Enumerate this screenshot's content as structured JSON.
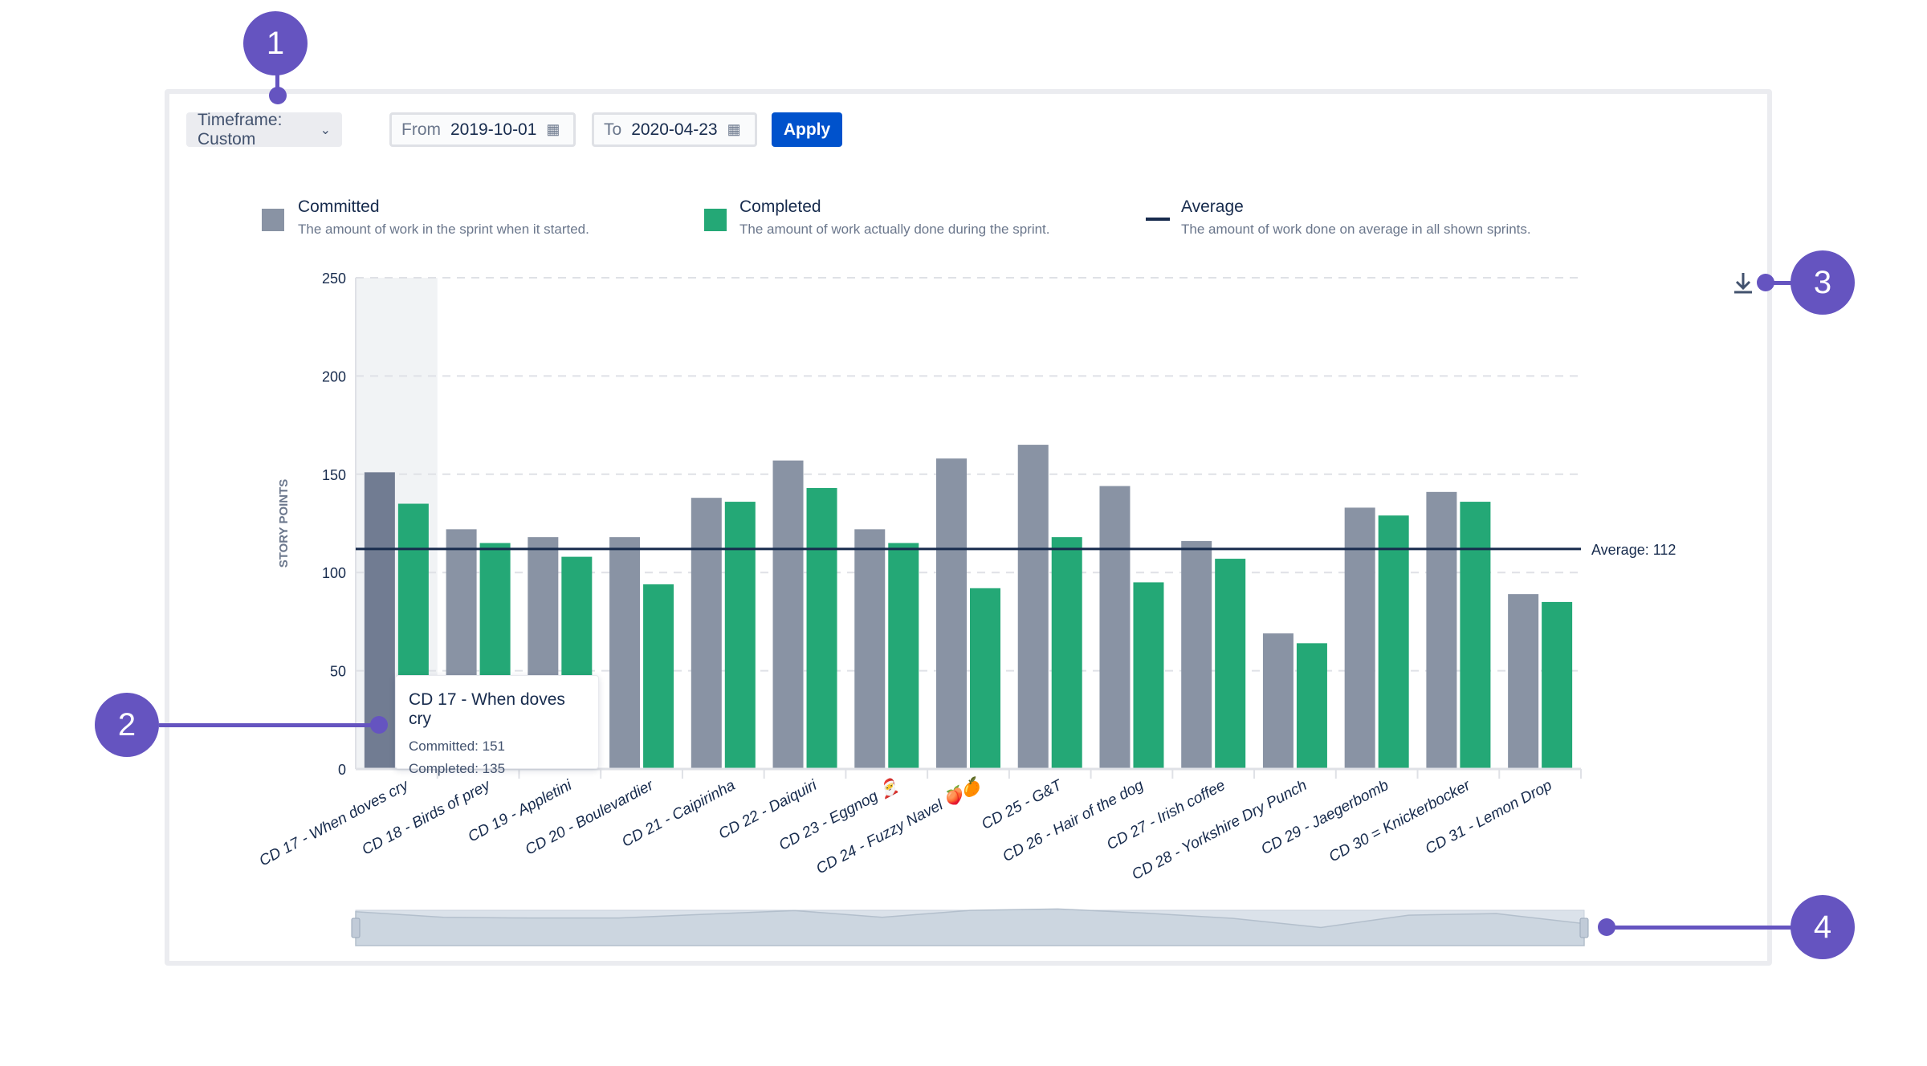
{
  "toolbar": {
    "timeframe_label": "Timeframe: Custom",
    "from_label": "From",
    "from_value": "2019-10-01",
    "to_label": "To",
    "to_value": "2020-04-23",
    "apply_label": "Apply"
  },
  "legend": [
    {
      "title": "Committed",
      "desc": "The amount of work in the sprint when it started.",
      "color": "#8993a4"
    },
    {
      "title": "Completed",
      "desc": "The amount of work actually done during the sprint.",
      "color": "#24a876"
    },
    {
      "title": "Average",
      "desc": "The amount of work done on average in all shown sprints.",
      "color": "#172b4d"
    }
  ],
  "tooltip": {
    "title": "CD 17 - When doves cry",
    "committed": "Committed: 151",
    "completed": "Completed: 135"
  },
  "callouts": [
    "1",
    "2",
    "3",
    "4"
  ],
  "icons": {
    "download": "download-icon",
    "calendar": "calendar-icon",
    "dropdown": "chevron-down-icon"
  },
  "chart_data": {
    "type": "bar",
    "ylabel": "STORY POINTS",
    "ylim": [
      0,
      250
    ],
    "yticks": [
      0,
      50,
      100,
      150,
      200,
      250
    ],
    "grid": true,
    "categories": [
      "CD 17 - When doves cry",
      "CD 18 - Birds of prey",
      "CD 19 - Appletini",
      "CD 20 - Boulevardier",
      "CD 21 - Caipirinha",
      "CD 22 - Daiquiri",
      "CD 23 - Eggnog 🎅",
      "CD 24 - Fuzzy Navel 🍑🍊",
      "CD 25 - G&T",
      "CD 26 - Hair of the dog",
      "CD 27 - Irish coffee",
      "CD 28 - Yorkshire Dry Punch",
      "CD 29 - Jaegerbomb",
      "CD 30 = Knickerbocker",
      "CD 31 - Lemon Drop"
    ],
    "series": [
      {
        "name": "Committed",
        "color": "#8993a4",
        "values": [
          151,
          122,
          118,
          118,
          138,
          157,
          122,
          158,
          165,
          144,
          116,
          69,
          133,
          141,
          89
        ]
      },
      {
        "name": "Completed",
        "color": "#24a876",
        "values": [
          135,
          115,
          108,
          94,
          136,
          143,
          115,
          92,
          118,
          95,
          107,
          64,
          129,
          136,
          85
        ]
      }
    ],
    "average": 112,
    "average_label": "Average: 112",
    "highlighted_category": "CD 17 - When doves cry"
  }
}
